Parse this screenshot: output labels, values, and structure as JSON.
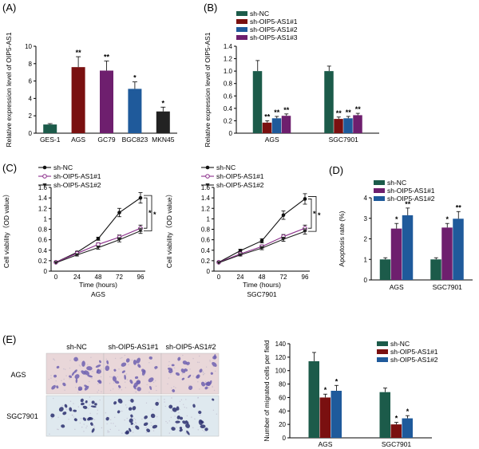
{
  "colors": {
    "sh_nc": "#1c5b4a",
    "sh1": "#7a1010",
    "sh2": "#1f5a9b",
    "sh3": "#6e1f6e",
    "line_nc": "#111111",
    "line_1": "#8b2f8b",
    "line_2": "#222222",
    "micro_bg_ags": "#e9d7d9",
    "micro_bg_sgc": "#dfe9ef",
    "micro_cell_ags": "#6f62b0",
    "micro_cell_sgc": "#2b2f6f"
  },
  "panels": {
    "A": "(A)",
    "B": "(B)",
    "C": "(C)",
    "D": "(D)",
    "E": "(E)"
  },
  "micrographs": {
    "columns": [
      "sh-NC",
      "sh-OIP5-AS1#1",
      "sh-OIP5-AS1#2"
    ],
    "rows": [
      "AGS",
      "SGC7901"
    ]
  },
  "chart_data": [
    {
      "id": "A",
      "type": "bar",
      "title": "",
      "xlabel": "",
      "ylabel": "Relative expression level of OIP5-AS1",
      "ylim": [
        0,
        10
      ],
      "yticks": [
        0,
        2,
        4,
        6,
        8,
        10
      ],
      "categories": [
        "GES-1",
        "AGS",
        "GC79",
        "BGC823",
        "MKN45"
      ],
      "values": [
        1.0,
        7.6,
        7.2,
        5.1,
        2.5
      ],
      "errors": [
        0.1,
        1.2,
        1.1,
        0.8,
        0.5
      ],
      "significance": [
        "",
        "**",
        "**",
        "*",
        "*"
      ],
      "bar_colors": [
        "sh_nc",
        "sh1",
        "sh3",
        "sh2",
        "line_2"
      ]
    },
    {
      "id": "B",
      "type": "bar",
      "title": "",
      "xlabel": "",
      "ylabel": "Relative expression level of OIP5-AS1",
      "ylim": [
        0,
        1.4
      ],
      "yticks": [
        0,
        0.2,
        0.4,
        0.6,
        0.8,
        1.0,
        1.2,
        1.4
      ],
      "ytick_labels": [
        "0",
        "0.2",
        "0.4",
        "0.6",
        "0.8",
        "1.0",
        "1.2",
        "1.4"
      ],
      "legend": [
        "sh-NC",
        "sh-OIP5-AS1#1",
        "sh-OIP5-AS1#2",
        "sh-OIP5-AS1#3"
      ],
      "legend_position": "top-left",
      "categories": [
        "AGS",
        "SGC7901"
      ],
      "series": [
        {
          "name": "sh-NC",
          "color": "sh_nc",
          "values": [
            1.0,
            1.0
          ],
          "errors": [
            0.17,
            0.08
          ],
          "sig": [
            "",
            ""
          ]
        },
        {
          "name": "sh-OIP5-AS1#1",
          "color": "sh1",
          "values": [
            0.17,
            0.23
          ],
          "errors": [
            0.03,
            0.03
          ],
          "sig": [
            "**",
            "**"
          ]
        },
        {
          "name": "sh-OIP5-AS1#2",
          "color": "sh2",
          "values": [
            0.24,
            0.24
          ],
          "errors": [
            0.03,
            0.03
          ],
          "sig": [
            "**",
            "**"
          ]
        },
        {
          "name": "sh-OIP5-AS1#3",
          "color": "sh3",
          "values": [
            0.28,
            0.29
          ],
          "errors": [
            0.03,
            0.03
          ],
          "sig": [
            "**",
            "**"
          ]
        }
      ]
    },
    {
      "id": "C1",
      "type": "line",
      "title": "",
      "xlabel": "Time (hours)",
      "sublabel": "AGS",
      "ylabel": "Cell viability（OD value）",
      "xlim": [
        0,
        96
      ],
      "ylim": [
        0,
        1.6
      ],
      "x": [
        0,
        24,
        48,
        72,
        96
      ],
      "yticks": [
        0,
        0.2,
        0.4,
        0.6,
        0.8,
        1.0,
        1.2,
        1.4,
        1.6
      ],
      "ytick_labels": [
        "0",
        "0.2",
        "0.4",
        "0.6",
        "0.8",
        "1",
        "1.2",
        "1.4",
        "1.6"
      ],
      "legend": [
        "sh-NC",
        "sh-OIP5-AS1#1",
        "sh-OIP5-AS1#2"
      ],
      "legend_position": "top-left",
      "brackets": [
        "*",
        "*"
      ],
      "series": [
        {
          "name": "sh-NC",
          "color": "line_nc",
          "marker": "filled-circle",
          "values": [
            0.17,
            0.36,
            0.62,
            1.12,
            1.4
          ],
          "errors": [
            0.01,
            0.02,
            0.03,
            0.08,
            0.1
          ]
        },
        {
          "name": "sh-OIP5-AS1#1",
          "color": "line_1",
          "marker": "open-circle",
          "values": [
            0.17,
            0.34,
            0.51,
            0.65,
            0.82
          ],
          "errors": [
            0.01,
            0.02,
            0.03,
            0.04,
            0.06
          ]
        },
        {
          "name": "sh-OIP5-AS1#2",
          "color": "line_2",
          "marker": "triangle",
          "values": [
            0.16,
            0.31,
            0.45,
            0.6,
            0.77
          ],
          "errors": [
            0.01,
            0.02,
            0.03,
            0.04,
            0.05
          ]
        }
      ]
    },
    {
      "id": "C2",
      "type": "line",
      "title": "",
      "xlabel": "Time (hours)",
      "sublabel": "SGC7901",
      "ylabel": "Cell viability（OD value）",
      "xlim": [
        0,
        96
      ],
      "ylim": [
        0,
        1.6
      ],
      "x": [
        0,
        24,
        48,
        72,
        96
      ],
      "yticks": [
        0,
        0.2,
        0.4,
        0.6,
        0.8,
        1.0,
        1.2,
        1.4,
        1.6
      ],
      "ytick_labels": [
        "0",
        "0.2",
        "0.4",
        "0.6",
        "0.8",
        "1",
        "1.2",
        "1.4",
        "1.6"
      ],
      "legend": [
        "sh-NC",
        "sh-OIP5-AS1#1",
        "sh-OIP5-AS1#2"
      ],
      "legend_position": "top-left",
      "brackets": [
        "*",
        "*"
      ],
      "series": [
        {
          "name": "sh-NC",
          "color": "line_nc",
          "marker": "filled-circle",
          "values": [
            0.17,
            0.39,
            0.58,
            1.07,
            1.38
          ],
          "errors": [
            0.01,
            0.03,
            0.04,
            0.08,
            0.1
          ]
        },
        {
          "name": "sh-OIP5-AS1#1",
          "color": "line_1",
          "marker": "open-circle",
          "values": [
            0.17,
            0.33,
            0.47,
            0.66,
            0.82
          ],
          "errors": [
            0.01,
            0.02,
            0.03,
            0.04,
            0.06
          ]
        },
        {
          "name": "sh-OIP5-AS1#2",
          "color": "line_2",
          "marker": "triangle",
          "values": [
            0.16,
            0.31,
            0.44,
            0.61,
            0.76
          ],
          "errors": [
            0.01,
            0.02,
            0.03,
            0.04,
            0.05
          ]
        }
      ]
    },
    {
      "id": "D",
      "type": "bar",
      "title": "",
      "xlabel": "",
      "ylabel": "Apoptosis rate (%)",
      "ylim": [
        0,
        4
      ],
      "yticks": [
        0,
        1,
        2,
        3,
        4
      ],
      "ytick_labels": [
        "0",
        "1",
        "2",
        "3",
        "4"
      ],
      "legend": [
        "sh-NC",
        "sh-OIP5-AS1#1",
        "sh-OIP5-AS1#2"
      ],
      "legend_position": "top-left",
      "categories": [
        "AGS",
        "SGC7901"
      ],
      "series": [
        {
          "name": "sh-NC",
          "color": "sh_nc",
          "values": [
            1.0,
            1.0
          ],
          "errors": [
            0.08,
            0.08
          ],
          "sig": [
            "",
            ""
          ]
        },
        {
          "name": "sh-OIP5-AS1#1",
          "color": "sh3",
          "values": [
            2.5,
            2.55
          ],
          "errors": [
            0.25,
            0.2
          ],
          "sig": [
            "*",
            "*"
          ]
        },
        {
          "name": "sh-OIP5-AS1#2",
          "color": "sh2",
          "values": [
            3.15,
            2.98
          ],
          "errors": [
            0.35,
            0.35
          ],
          "sig": [
            "**",
            "**"
          ]
        }
      ]
    },
    {
      "id": "E",
      "type": "bar",
      "title": "",
      "xlabel": "",
      "ylabel": "Number of migrated cells per field",
      "ylim": [
        0,
        140
      ],
      "yticks": [
        0,
        20,
        40,
        60,
        80,
        100,
        120,
        140
      ],
      "ytick_labels": [
        "0",
        "20",
        "40",
        "60",
        "80",
        "100",
        "120",
        "140"
      ],
      "legend": [
        "sh-NC",
        "sh-OIP5-AS1#1",
        "sh-OIP5-AS1#2"
      ],
      "legend_position": "top-right",
      "categories": [
        "AGS",
        "SGC7901"
      ],
      "series": [
        {
          "name": "sh-NC",
          "color": "sh_nc",
          "values": [
            114,
            68
          ],
          "errors": [
            13,
            6
          ],
          "sig": [
            "",
            ""
          ]
        },
        {
          "name": "sh-OIP5-AS1#1",
          "color": "sh1",
          "values": [
            60,
            20
          ],
          "errors": [
            5,
            3
          ],
          "sig": [
            "*",
            "*"
          ]
        },
        {
          "name": "sh-OIP5-AS1#2",
          "color": "sh2",
          "values": [
            70,
            29
          ],
          "errors": [
            8,
            4
          ],
          "sig": [
            "*",
            "*"
          ]
        }
      ]
    }
  ]
}
